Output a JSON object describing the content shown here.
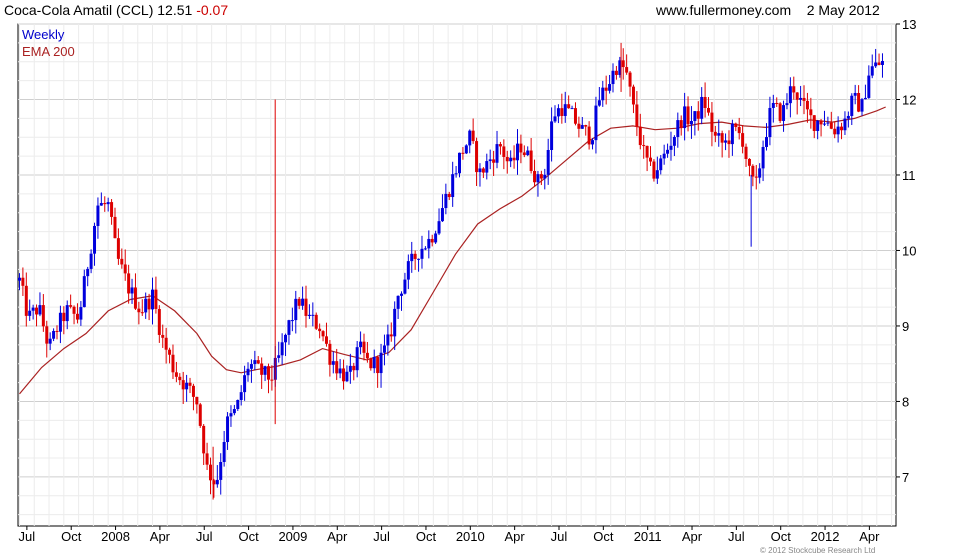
{
  "header": {
    "title": "Coca-Cola Amatil (CCL)",
    "last": "12.51",
    "change": "-0.07",
    "source": "www.fullermoney.com",
    "date": "2 May 2012"
  },
  "footer": {
    "copyright": "© 2012 Stockcube Research Ltd"
  },
  "colors": {
    "up": "#0000dd",
    "down": "#dd0000",
    "ema": "#aa2222",
    "grid": "#d8d8d8",
    "axis": "#000000"
  },
  "chart_data": {
    "type": "candlestick",
    "frequency": "Weekly",
    "legend": [
      "Weekly",
      "EMA 200"
    ],
    "y_ticks": [
      7,
      8,
      9,
      10,
      11,
      12,
      13
    ],
    "ylim": [
      6.35,
      13.0
    ],
    "x_ticks": [
      {
        "label": "Jul",
        "t": 0.5
      },
      {
        "label": "Oct",
        "t": 3.5
      },
      {
        "label": "2008",
        "t": 6.5
      },
      {
        "label": "Apr",
        "t": 9.5
      },
      {
        "label": "Jul",
        "t": 12.5
      },
      {
        "label": "Oct",
        "t": 15.5
      },
      {
        "label": "2009",
        "t": 18.5
      },
      {
        "label": "Apr",
        "t": 21.5
      },
      {
        "label": "Jul",
        "t": 24.5
      },
      {
        "label": "Oct",
        "t": 27.5
      },
      {
        "label": "2010",
        "t": 30.5
      },
      {
        "label": "Apr",
        "t": 33.5
      },
      {
        "label": "Jul",
        "t": 36.5
      },
      {
        "label": "Oct",
        "t": 39.5
      },
      {
        "label": "2011",
        "t": 42.5
      },
      {
        "label": "Apr",
        "t": 45.5
      },
      {
        "label": "Jul",
        "t": 48.5
      },
      {
        "label": "Oct",
        "t": 51.5
      },
      {
        "label": "2012",
        "t": 54.5
      },
      {
        "label": "Apr",
        "t": 57.5
      }
    ],
    "xlim": [
      -0.1,
      59.3
    ],
    "price_path": [
      [
        0.0,
        9.6
      ],
      [
        0.6,
        9.1
      ],
      [
        1.3,
        9.25
      ],
      [
        2.0,
        8.7
      ],
      [
        2.6,
        9.0
      ],
      [
        3.2,
        9.2
      ],
      [
        4.0,
        9.1
      ],
      [
        4.6,
        9.8
      ],
      [
        5.3,
        10.6
      ],
      [
        6.0,
        10.6
      ],
      [
        6.6,
        9.9
      ],
      [
        7.4,
        9.5
      ],
      [
        8.2,
        9.2
      ],
      [
        9.0,
        9.4
      ],
      [
        9.7,
        8.8
      ],
      [
        10.5,
        8.4
      ],
      [
        11.3,
        8.2
      ],
      [
        12.0,
        8.0
      ],
      [
        12.7,
        7.1
      ],
      [
        13.3,
        6.9
      ],
      [
        14.0,
        7.7
      ],
      [
        14.7,
        7.9
      ],
      [
        15.5,
        8.5
      ],
      [
        16.2,
        8.4
      ],
      [
        17.0,
        8.3
      ],
      [
        17.6,
        8.6
      ],
      [
        18.2,
        9.0
      ],
      [
        18.9,
        9.35
      ],
      [
        19.6,
        9.1
      ],
      [
        20.3,
        9.0
      ],
      [
        21.0,
        8.6
      ],
      [
        21.7,
        8.4
      ],
      [
        22.3,
        8.3
      ],
      [
        23.0,
        8.7
      ],
      [
        23.6,
        8.5
      ],
      [
        24.3,
        8.5
      ],
      [
        25.0,
        8.8
      ],
      [
        25.6,
        9.4
      ],
      [
        26.3,
        9.75
      ],
      [
        27.0,
        10.0
      ],
      [
        27.8,
        10.15
      ],
      [
        28.5,
        10.5
      ],
      [
        29.2,
        10.9
      ],
      [
        29.9,
        11.3
      ],
      [
        30.5,
        11.5
      ],
      [
        31.1,
        11.0
      ],
      [
        31.8,
        11.2
      ],
      [
        32.5,
        11.4
      ],
      [
        33.2,
        11.1
      ],
      [
        33.9,
        11.4
      ],
      [
        34.5,
        11.2
      ],
      [
        35.1,
        10.9
      ],
      [
        35.6,
        11.1
      ],
      [
        36.1,
        11.8
      ],
      [
        36.7,
        11.9
      ],
      [
        37.3,
        11.8
      ],
      [
        38.0,
        11.6
      ],
      [
        38.7,
        11.5
      ],
      [
        39.2,
        12.0
      ],
      [
        39.8,
        12.2
      ],
      [
        40.4,
        12.45
      ],
      [
        41.0,
        12.4
      ],
      [
        41.6,
        11.8
      ],
      [
        42.2,
        11.3
      ],
      [
        42.8,
        11.0
      ],
      [
        43.5,
        11.2
      ],
      [
        44.2,
        11.5
      ],
      [
        44.9,
        11.8
      ],
      [
        45.6,
        11.7
      ],
      [
        46.3,
        12.0
      ],
      [
        47.0,
        11.5
      ],
      [
        47.7,
        11.4
      ],
      [
        48.3,
        11.6
      ],
      [
        48.9,
        11.5
      ],
      [
        49.4,
        11.0
      ],
      [
        49.8,
        10.8
      ],
      [
        50.3,
        11.4
      ],
      [
        50.9,
        11.9
      ],
      [
        51.6,
        11.8
      ],
      [
        52.3,
        12.2
      ],
      [
        53.0,
        11.9
      ],
      [
        53.7,
        11.7
      ],
      [
        54.4,
        11.75
      ],
      [
        55.1,
        11.6
      ],
      [
        55.8,
        11.7
      ],
      [
        56.4,
        12.0
      ],
      [
        57.0,
        11.9
      ],
      [
        57.5,
        12.4
      ],
      [
        58.0,
        12.45
      ],
      [
        58.6,
        12.51
      ]
    ],
    "spikes": [
      {
        "t": 17.3,
        "low": 7.7,
        "high": 12.0
      },
      {
        "t": 49.5,
        "low": 10.05,
        "high": 11.0
      },
      {
        "t": 13.1,
        "low": 6.7,
        "high": 7.4
      },
      {
        "t": 40.7,
        "low": 12.1,
        "high": 12.75
      }
    ],
    "ema_200": [
      [
        0.0,
        8.1
      ],
      [
        1.5,
        8.45
      ],
      [
        3.0,
        8.7
      ],
      [
        4.5,
        8.9
      ],
      [
        6.0,
        9.2
      ],
      [
        7.5,
        9.35
      ],
      [
        9.0,
        9.4
      ],
      [
        10.5,
        9.2
      ],
      [
        12.0,
        8.9
      ],
      [
        13.0,
        8.6
      ],
      [
        14.0,
        8.42
      ],
      [
        15.0,
        8.38
      ],
      [
        16.0,
        8.42
      ],
      [
        17.5,
        8.47
      ],
      [
        19.0,
        8.55
      ],
      [
        20.5,
        8.7
      ],
      [
        22.0,
        8.62
      ],
      [
        23.5,
        8.55
      ],
      [
        25.0,
        8.65
      ],
      [
        26.5,
        8.95
      ],
      [
        28.0,
        9.45
      ],
      [
        29.5,
        9.95
      ],
      [
        31.0,
        10.35
      ],
      [
        32.5,
        10.55
      ],
      [
        34.0,
        10.72
      ],
      [
        35.5,
        10.95
      ],
      [
        37.0,
        11.2
      ],
      [
        38.5,
        11.45
      ],
      [
        40.0,
        11.62
      ],
      [
        41.5,
        11.65
      ],
      [
        43.0,
        11.6
      ],
      [
        44.5,
        11.62
      ],
      [
        46.0,
        11.68
      ],
      [
        47.5,
        11.7
      ],
      [
        49.0,
        11.65
      ],
      [
        50.5,
        11.63
      ],
      [
        52.0,
        11.67
      ],
      [
        53.5,
        11.73
      ],
      [
        55.0,
        11.7
      ],
      [
        56.5,
        11.75
      ],
      [
        58.0,
        11.85
      ],
      [
        58.6,
        11.9
      ]
    ]
  }
}
